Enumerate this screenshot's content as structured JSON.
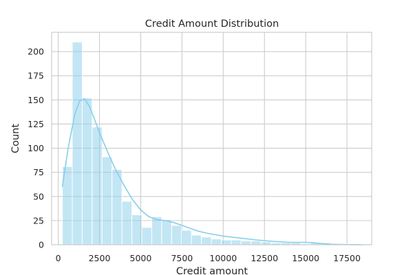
{
  "chart_data": {
    "type": "histogram",
    "title": "Credit Amount Distribution",
    "xlabel": "Credit amount",
    "ylabel": "Count",
    "xlim": [
      -400,
      19000
    ],
    "ylim": [
      0,
      220
    ],
    "xticks": [
      0,
      2500,
      5000,
      7500,
      10000,
      12500,
      15000,
      17500
    ],
    "yticks": [
      0,
      25,
      50,
      75,
      100,
      125,
      150,
      175,
      200
    ],
    "grid": true,
    "legend": null,
    "bar_color": "#87ceeb",
    "bar_opacity": 0.5,
    "kde_color": "#87ceeb",
    "bins": {
      "start": 250,
      "width": 602,
      "counts": [
        81,
        210,
        152,
        122,
        91,
        78,
        45,
        31,
        18,
        29,
        26,
        20,
        15,
        10,
        8,
        6,
        5,
        5,
        4,
        4,
        3,
        2,
        2,
        2,
        1,
        2,
        2,
        1,
        1,
        1,
        1
      ]
    },
    "kde": {
      "x": [
        250,
        600,
        1000,
        1300,
        1600,
        1900,
        2200,
        2500,
        2800,
        3100,
        3500,
        4000,
        4500,
        5000,
        5500,
        6000,
        6500,
        7000,
        7500,
        8000,
        8500,
        9000,
        10000,
        11000,
        12000,
        13000,
        14000,
        15000,
        15500,
        16000,
        16500,
        17000,
        18000,
        18424
      ],
      "y": [
        60,
        100,
        135,
        149,
        151,
        143,
        130,
        116,
        104,
        92,
        77,
        61,
        47,
        36,
        29,
        26,
        25,
        23,
        20,
        17,
        14,
        12,
        9,
        7,
        5,
        3.5,
        2.5,
        2.5,
        2,
        1.2,
        0.6,
        0.3,
        0.1,
        0
      ]
    }
  }
}
